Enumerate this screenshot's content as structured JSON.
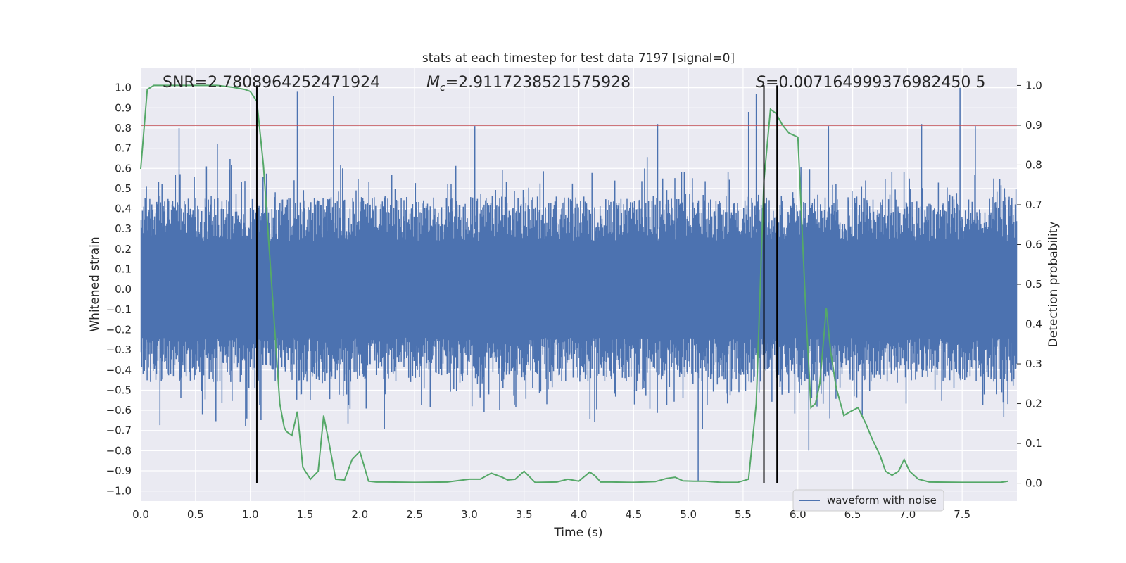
{
  "chart_data": {
    "type": "line",
    "title": "stats at each timestep for test data 7197 [signal=0]",
    "xlabel": "Time (s)",
    "ylabel": "Whitened strain",
    "y2label": "Detection probability",
    "xlim": [
      0.0,
      8.0
    ],
    "ylim": [
      -1.05,
      1.1
    ],
    "y2lim": [
      -0.045,
      1.045
    ],
    "x_ticks": [
      "0.0",
      "0.5",
      "1.0",
      "1.5",
      "2.0",
      "2.5",
      "3.0",
      "3.5",
      "4.0",
      "4.5",
      "5.0",
      "5.5",
      "6.0",
      "6.5",
      "7.0",
      "7.5"
    ],
    "y_ticks": [
      "1.0",
      "0.9",
      "0.8",
      "0.7",
      "0.6",
      "0.5",
      "0.4",
      "0.3",
      "0.2",
      "0.1",
      "0.0",
      "-0.1",
      "-0.2",
      "-0.3",
      "-0.4",
      "-0.5",
      "-0.6",
      "-0.7",
      "-0.8",
      "-0.9",
      "-1.0"
    ],
    "y2_ticks": [
      "1.0",
      "0.9",
      "0.8",
      "0.7",
      "0.6",
      "0.5",
      "0.4",
      "0.3",
      "0.2",
      "0.1",
      "0.0"
    ],
    "grid": true,
    "legend": {
      "placement": "lower-right",
      "entries": [
        "waveform with noise"
      ]
    },
    "annotations": {
      "snr": "SNR=2.7808964252471924",
      "mc_symbol": "M",
      "mc_sub": "c",
      "mc_value": "=2.9117238521575928",
      "s_symbol": "S",
      "s_value": "=0.007164999376982450 5"
    },
    "threshold": {
      "axis": "y2",
      "value": 0.9,
      "color": "#c44e52"
    },
    "vlines": {
      "x": [
        1.06,
        5.69,
        5.81
      ],
      "y2_range": [
        0.0,
        1.0
      ],
      "color": "#000000"
    },
    "series": [
      {
        "name": "waveform with noise",
        "axis": "y",
        "color": "#4c72b0",
        "note_peaks": {
          "x": [
            0.35,
            0.7,
            1.43,
            1.76,
            3.05,
            4.72,
            5.09,
            5.55,
            5.62,
            6.1,
            6.28,
            7.13,
            7.48,
            7.62
          ],
          "y": [
            0.8,
            0.72,
            0.98,
            0.96,
            0.81,
            0.82,
            -0.95,
            0.88,
            0.97,
            -0.8,
            0.81,
            0.82,
            1.0,
            0.81
          ]
        }
      },
      {
        "name": "detection probability",
        "axis": "y2",
        "color": "#55a868",
        "x": [
          0.0,
          0.06,
          0.12,
          0.3,
          0.5,
          0.7,
          0.85,
          0.95,
          1.0,
          1.06,
          1.12,
          1.2,
          1.27,
          1.31,
          1.33,
          1.38,
          1.43,
          1.48,
          1.55,
          1.62,
          1.67,
          1.72,
          1.78,
          1.86,
          1.93,
          2.0,
          2.08,
          2.15,
          2.25,
          2.5,
          2.8,
          3.0,
          3.1,
          3.2,
          3.3,
          3.35,
          3.42,
          3.5,
          3.6,
          3.8,
          3.9,
          4.0,
          4.1,
          4.15,
          4.2,
          4.3,
          4.5,
          4.7,
          4.8,
          4.88,
          4.95,
          5.05,
          5.15,
          5.3,
          5.45,
          5.55,
          5.62,
          5.69,
          5.75,
          5.8,
          5.86,
          5.92,
          6.0,
          6.07,
          6.12,
          6.16,
          6.2,
          6.26,
          6.3,
          6.35,
          6.42,
          6.48,
          6.55,
          6.62,
          6.68,
          6.75,
          6.8,
          6.86,
          6.92,
          6.97,
          7.02,
          7.1,
          7.2,
          7.5,
          7.85,
          7.92
        ],
        "y": [
          0.79,
          0.99,
          1.0,
          1.0,
          1.0,
          1.0,
          0.995,
          0.99,
          0.985,
          0.96,
          0.8,
          0.48,
          0.2,
          0.14,
          0.13,
          0.12,
          0.18,
          0.04,
          0.01,
          0.03,
          0.17,
          0.1,
          0.01,
          0.008,
          0.06,
          0.08,
          0.005,
          0.003,
          0.003,
          0.002,
          0.003,
          0.01,
          0.01,
          0.025,
          0.015,
          0.008,
          0.01,
          0.03,
          0.002,
          0.003,
          0.01,
          0.005,
          0.028,
          0.018,
          0.003,
          0.003,
          0.002,
          0.004,
          0.012,
          0.015,
          0.006,
          0.005,
          0.005,
          0.002,
          0.002,
          0.01,
          0.2,
          0.76,
          0.94,
          0.93,
          0.9,
          0.88,
          0.87,
          0.45,
          0.19,
          0.2,
          0.25,
          0.44,
          0.33,
          0.24,
          0.17,
          0.18,
          0.19,
          0.15,
          0.11,
          0.07,
          0.03,
          0.02,
          0.03,
          0.06,
          0.03,
          0.01,
          0.003,
          0.002,
          0.002,
          0.005
        ]
      }
    ]
  }
}
